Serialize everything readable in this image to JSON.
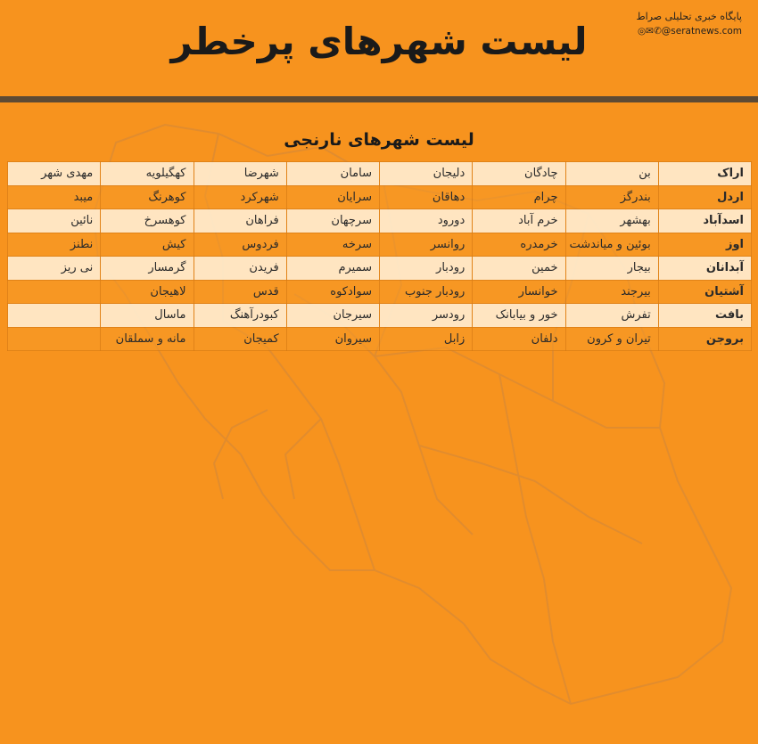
{
  "title": "لیست شهرهای پرخطر",
  "watermark": {
    "name": "پایگاه خبری تحلیلی صراط",
    "site": "◎✉✆@seratnews.com"
  },
  "table": {
    "title": "لیست شهرهای نارنجی",
    "rows": [
      [
        "اراک",
        "بن",
        "چادگان",
        "دلیجان",
        "سامان",
        "شهرضا",
        "کهگیلویه",
        "مهدی شهر"
      ],
      [
        "اردل",
        "بندرگز",
        "چرام",
        "دهاقان",
        "سرایان",
        "شهرکرد",
        "کوهرنگ",
        "میبد"
      ],
      [
        "اسدآباد",
        "بهشهر",
        "خرم آباد",
        "دورود",
        "سرچهان",
        "فراهان",
        "کوهسرخ",
        "نائین"
      ],
      [
        "اوز",
        "بوئین و میاندشت",
        "خرمدره",
        "روانسر",
        "سرخه",
        "فردوس",
        "کیش",
        "نطنز"
      ],
      [
        "آبدانان",
        "بیجار",
        "خمین",
        "رودبار",
        "سمیرم",
        "فریدن",
        "گرمسار",
        "نی ریز"
      ],
      [
        "آشتیان",
        "بیرجند",
        "خوانسار",
        "رودبار جنوب",
        "سوادکوه",
        "قدس",
        "لاهیجان",
        ""
      ],
      [
        "بافت",
        "تفرش",
        "خور و بیابانک",
        "رودسر",
        "سیرجان",
        "کبودرآهنگ",
        "ماسال",
        ""
      ],
      [
        "بروجن",
        "تیران و کرون",
        "دلفان",
        "زابل",
        "سیروان",
        "کمیجان",
        "مانه و سملقان",
        ""
      ]
    ]
  }
}
